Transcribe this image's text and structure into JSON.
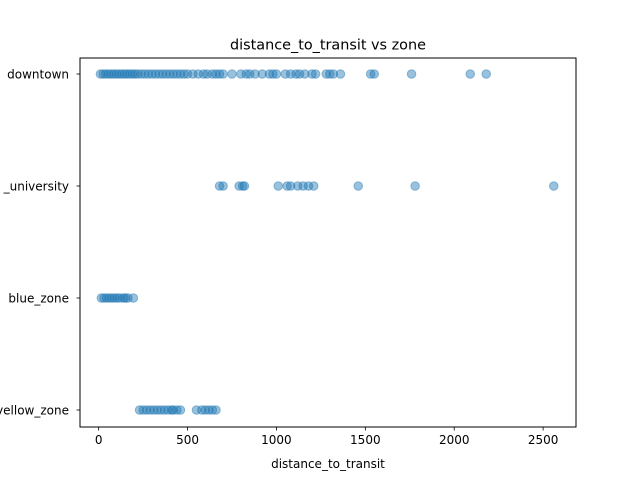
{
  "chart_data": {
    "type": "scatter",
    "title": "distance_to_transit vs zone",
    "xlabel": "distance_to_transit",
    "ylabel": "",
    "xlim": [
      -105,
      2685
    ],
    "x_ticks": [
      0,
      500,
      1000,
      1500,
      2000,
      2500
    ],
    "x_tick_labels": [
      "0",
      "500",
      "1000",
      "1500",
      "2000",
      "2500"
    ],
    "categories": [
      "downtown",
      "_university",
      "blue_zone",
      "yellow_zone"
    ],
    "grid": false,
    "legend": "none",
    "point_color": "#1f77b4",
    "point_alpha": 0.45,
    "series": [
      {
        "category": "downtown",
        "x": [
          10,
          25,
          40,
          55,
          70,
          85,
          100,
          115,
          130,
          145,
          160,
          175,
          190,
          205,
          220,
          240,
          260,
          280,
          300,
          320,
          340,
          360,
          380,
          400,
          420,
          440,
          460,
          480,
          500,
          530,
          560,
          590,
          610,
          640,
          660,
          680,
          700,
          750,
          800,
          830,
          850,
          880,
          920,
          960,
          980,
          1000,
          1050,
          1080,
          1110,
          1130,
          1160,
          1200,
          1220,
          1280,
          1300,
          1320,
          1360,
          1530,
          1550,
          1760,
          2090,
          2180
        ]
      },
      {
        "category": "_university",
        "x": [
          680,
          700,
          790,
          810,
          820,
          1010,
          1060,
          1080,
          1120,
          1150,
          1180,
          1210,
          1460,
          1780,
          2560
        ]
      },
      {
        "category": "blue_zone",
        "x": [
          15,
          30,
          45,
          60,
          75,
          90,
          105,
          120,
          140,
          150,
          165,
          195
        ]
      },
      {
        "category": "yellow_zone",
        "x": [
          230,
          250,
          270,
          290,
          310,
          330,
          350,
          370,
          390,
          410,
          420,
          440,
          460,
          550,
          580,
          600,
          620,
          640,
          660
        ]
      }
    ]
  }
}
